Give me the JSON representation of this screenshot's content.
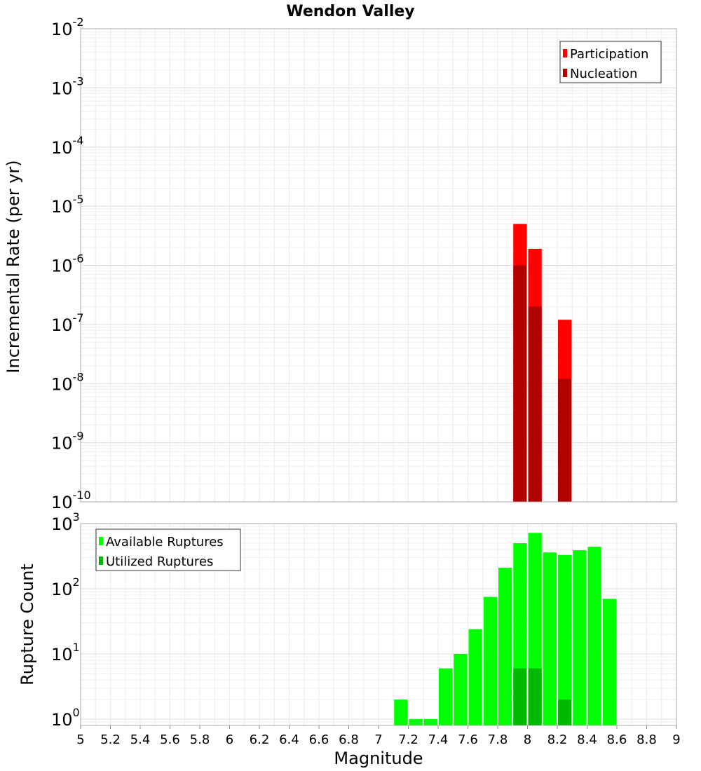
{
  "chart_data": [
    {
      "type": "bar",
      "title": "Wendon Valley",
      "ylabel": "Incremental Rate (per yr)",
      "xlabel": "",
      "yscale": "log",
      "ylim": [
        1e-10,
        0.01
      ],
      "xlim": [
        5,
        9
      ],
      "bin_width": 0.1,
      "y_ticks": [
        {
          "base": "10",
          "exp": "-2",
          "value": 0.01
        },
        {
          "base": "10",
          "exp": "-3",
          "value": 0.001
        },
        {
          "base": "10",
          "exp": "-4",
          "value": 0.0001
        },
        {
          "base": "10",
          "exp": "-5",
          "value": 1e-05
        },
        {
          "base": "10",
          "exp": "-6",
          "value": 1e-06
        },
        {
          "base": "10",
          "exp": "-7",
          "value": 1e-07
        },
        {
          "base": "10",
          "exp": "-8",
          "value": 1e-08
        },
        {
          "base": "10",
          "exp": "-9",
          "value": 1e-09
        },
        {
          "base": "10",
          "exp": "-10",
          "value": 1e-10
        }
      ],
      "legend_position": "top-right",
      "series": [
        {
          "name": "Participation",
          "color": "#ff0000",
          "x": [
            7.95,
            8.05,
            8.25
          ],
          "values": [
            5e-06,
            1.9e-06,
            1.2e-07
          ]
        },
        {
          "name": "Nucleation",
          "color": "#b00000",
          "x": [
            7.95,
            8.05,
            8.25
          ],
          "values": [
            1e-06,
            2e-07,
            1.2e-08
          ]
        }
      ]
    },
    {
      "type": "bar",
      "title": "",
      "ylabel": "Rupture Count",
      "xlabel": "Magnitude",
      "yscale": "log",
      "ylim": [
        0.8,
        1000
      ],
      "xlim": [
        5,
        9
      ],
      "bin_width": 0.1,
      "x_ticks": [
        "5",
        "5.2",
        "5.4",
        "5.6",
        "5.8",
        "6",
        "6.2",
        "6.4",
        "6.6",
        "6.8",
        "7",
        "7.2",
        "7.4",
        "7.6",
        "7.8",
        "8",
        "8.2",
        "8.4",
        "8.6",
        "8.8",
        "9"
      ],
      "y_ticks": [
        {
          "base": "10",
          "exp": "3",
          "value": 1000
        },
        {
          "base": "10",
          "exp": "2",
          "value": 100
        },
        {
          "base": "10",
          "exp": "1",
          "value": 10
        },
        {
          "base": "10",
          "exp": "0",
          "value": 1
        }
      ],
      "legend_position": "top-left",
      "series": [
        {
          "name": "Available Ruptures",
          "color": "#00ff00",
          "x": [
            7.15,
            7.25,
            7.35,
            7.45,
            7.55,
            7.65,
            7.75,
            7.85,
            7.95,
            8.05,
            8.15,
            8.25,
            8.35,
            8.45,
            8.55
          ],
          "values": [
            2,
            1,
            1,
            6,
            10,
            24,
            75,
            210,
            500,
            720,
            360,
            330,
            390,
            440,
            70
          ]
        },
        {
          "name": "Utilized Ruptures",
          "color": "#00b800",
          "x": [
            7.95,
            8.05,
            8.25
          ],
          "values": [
            6,
            6,
            2
          ]
        }
      ]
    }
  ]
}
